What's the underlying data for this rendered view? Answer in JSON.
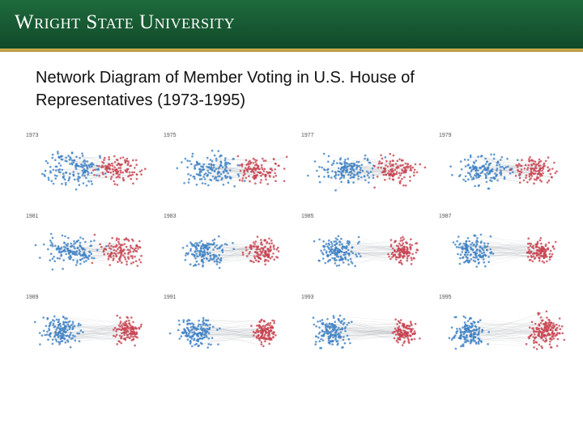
{
  "header": {
    "logo_text": "Wright State University",
    "band_color": "#1a5e35",
    "rule_color": "#c9a64a"
  },
  "slide": {
    "title_line1": "Network Diagram of Member Voting in U.S. House of",
    "title_line2": "Representatives (1973-1995)"
  },
  "colors": {
    "democrat": "#3b7fc4",
    "republican": "#c8414f",
    "edge": "#9aa0a6"
  },
  "panels": [
    {
      "year": "1973",
      "separation": 0.2
    },
    {
      "year": "1975",
      "separation": 0.3
    },
    {
      "year": "1977",
      "separation": 0.3
    },
    {
      "year": "1979",
      "separation": 0.35
    },
    {
      "year": "1981",
      "separation": 0.3
    },
    {
      "year": "1983",
      "separation": 0.55
    },
    {
      "year": "1985",
      "separation": 0.7
    },
    {
      "year": "1987",
      "separation": 0.75
    },
    {
      "year": "1989",
      "separation": 0.75
    },
    {
      "year": "1991",
      "separation": 0.8
    },
    {
      "year": "1993",
      "separation": 0.9
    },
    {
      "year": "1995",
      "separation": 1.0
    }
  ]
}
